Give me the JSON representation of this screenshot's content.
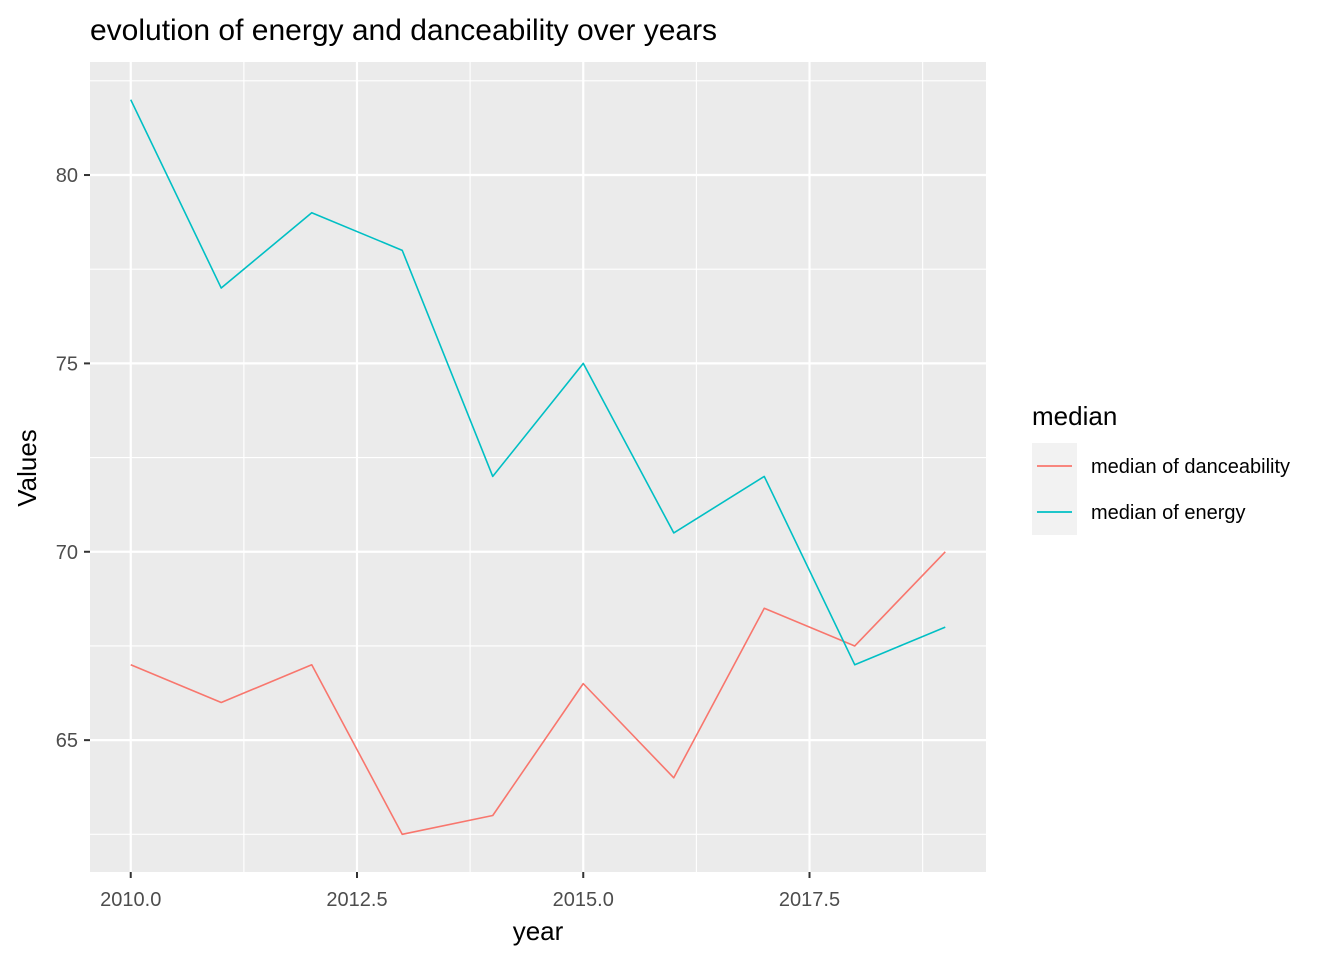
{
  "chart_data": {
    "type": "line",
    "title": "evolution of energy and danceability over years",
    "xlabel": "year",
    "ylabel": "Values",
    "x": [
      2010,
      2011,
      2012,
      2013,
      2014,
      2015,
      2016,
      2017,
      2018,
      2019
    ],
    "xlim": [
      2009.55,
      2019.45
    ],
    "ylim": [
      61.5,
      83.0
    ],
    "x_ticks": [
      2010.0,
      2012.5,
      2015.0,
      2017.5
    ],
    "x_tick_labels": [
      "2010.0",
      "2012.5",
      "2015.0",
      "2017.5"
    ],
    "y_ticks": [
      65,
      70,
      75,
      80
    ],
    "y_tick_labels": [
      "65",
      "70",
      "75",
      "80"
    ],
    "grid": true,
    "legend": {
      "title": "median",
      "placement": "right"
    },
    "series": [
      {
        "name": "median of danceability",
        "color": "#F8766D",
        "values": [
          67,
          66,
          67,
          62.5,
          63,
          66.5,
          64,
          68.5,
          67.5,
          70
        ]
      },
      {
        "name": "median of energy",
        "color": "#00BFC4",
        "values": [
          82,
          77,
          79,
          78,
          72,
          75,
          70.5,
          72,
          67,
          68
        ]
      }
    ],
    "panel_background": "#EBEBEB",
    "grid_color": "#FFFFFF"
  }
}
